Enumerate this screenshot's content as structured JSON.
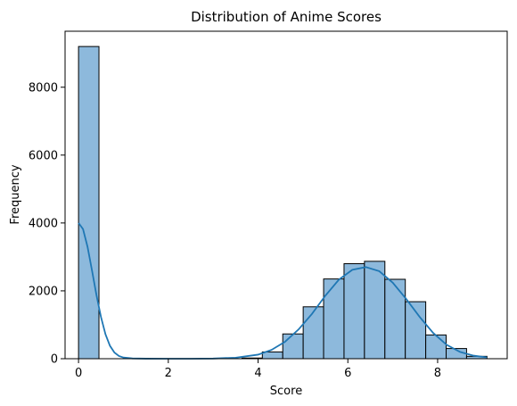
{
  "chart_data": {
    "type": "bar",
    "title": "Distribution of Anime Scores",
    "xlabel": "Score",
    "ylabel": "Frequency",
    "xlim": [
      -0.3,
      9.55
    ],
    "ylim": [
      0,
      9650
    ],
    "xticks": [
      0,
      2,
      4,
      6,
      8
    ],
    "yticks": [
      0,
      2000,
      4000,
      6000,
      8000
    ],
    "grid": false,
    "bar_color": "#8db9dc",
    "bar_edge_color": "#000000",
    "kde_color": "#1f77b4",
    "bins": [
      {
        "x0": 0.0,
        "x1": 0.455,
        "value": 9200
      },
      {
        "x0": 0.455,
        "x1": 0.91,
        "value": 0
      },
      {
        "x0": 0.91,
        "x1": 1.365,
        "value": 0
      },
      {
        "x0": 1.365,
        "x1": 1.82,
        "value": 0
      },
      {
        "x0": 1.82,
        "x1": 2.275,
        "value": 0
      },
      {
        "x0": 2.275,
        "x1": 2.73,
        "value": 0
      },
      {
        "x0": 2.73,
        "x1": 3.185,
        "value": 0
      },
      {
        "x0": 3.185,
        "x1": 3.64,
        "value": 0
      },
      {
        "x0": 3.64,
        "x1": 4.095,
        "value": 20
      },
      {
        "x0": 4.095,
        "x1": 4.55,
        "value": 200
      },
      {
        "x0": 4.55,
        "x1": 5.005,
        "value": 730
      },
      {
        "x0": 5.005,
        "x1": 5.46,
        "value": 1530
      },
      {
        "x0": 5.46,
        "x1": 5.915,
        "value": 2350
      },
      {
        "x0": 5.915,
        "x1": 6.37,
        "value": 2800
      },
      {
        "x0": 6.37,
        "x1": 6.825,
        "value": 2870
      },
      {
        "x0": 6.825,
        "x1": 7.28,
        "value": 2340
      },
      {
        "x0": 7.28,
        "x1": 7.735,
        "value": 1680
      },
      {
        "x0": 7.735,
        "x1": 8.19,
        "value": 700
      },
      {
        "x0": 8.19,
        "x1": 8.645,
        "value": 300
      },
      {
        "x0": 8.645,
        "x1": 9.1,
        "value": 70
      }
    ],
    "kde": {
      "x": [
        0,
        0.1,
        0.2,
        0.3,
        0.4,
        0.5,
        0.6,
        0.7,
        0.8,
        0.9,
        1.0,
        1.2,
        1.5,
        2.0,
        2.5,
        3.0,
        3.5,
        4.0,
        4.3,
        4.6,
        4.9,
        5.2,
        5.5,
        5.8,
        6.1,
        6.4,
        6.7,
        7.0,
        7.3,
        7.6,
        7.9,
        8.2,
        8.5,
        8.8,
        9.1
      ],
      "y": [
        4000,
        3820,
        3300,
        2600,
        1870,
        1230,
        720,
        380,
        180,
        80,
        35,
        8,
        2,
        0,
        0,
        5,
        30,
        120,
        260,
        500,
        860,
        1320,
        1860,
        2330,
        2620,
        2700,
        2580,
        2240,
        1760,
        1230,
        760,
        410,
        200,
        90,
        40
      ]
    }
  }
}
